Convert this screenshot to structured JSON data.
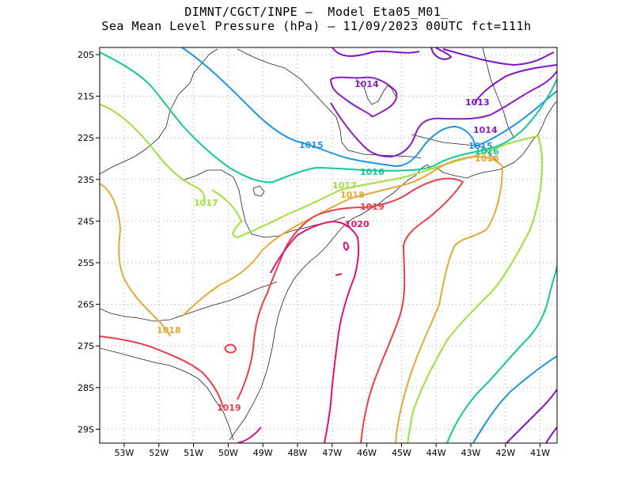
{
  "header": {
    "line1": "DIMNT/CGCT/INPE –  Model Eta05_M01_",
    "line2": "Sea Mean Level Pressure (hPa) – 11/09/2023 00UTC fct=111h"
  },
  "axes": {
    "lon_ticks": [
      "53W",
      "52W",
      "51W",
      "50W",
      "49W",
      "48W",
      "47W",
      "46W",
      "45W",
      "44W",
      "43W",
      "42W",
      "41W"
    ],
    "lat_ticks": [
      "20S",
      "21S",
      "22S",
      "23S",
      "24S",
      "25S",
      "26S",
      "27S",
      "28S",
      "29S"
    ]
  },
  "colors": {
    "c1013": "#7e13c9",
    "c1014": "#8c1ec2",
    "c1015": "#1f96e0",
    "c1016": "#16c79a",
    "c1017": "#9fe03c",
    "c1018": "#e6a83a",
    "c1019": "#e8404a",
    "c1020": "#e0127a",
    "c1021": "#1f96e0",
    "c1022": "#16c79a"
  },
  "contour_labels": {
    "l1013": "1013",
    "l1014a": "1014",
    "l1014b": "1014",
    "l1015a": "1015",
    "l1015b": "1015",
    "l1016a": "1016",
    "l1016b": "1016",
    "l1017a": "1017",
    "l1017b": "1017",
    "l1018a": "1018",
    "l1018b": "1018",
    "l1018c": "1018",
    "l1019a": "1019",
    "l1019b": "1019",
    "l1020": "1020"
  }
}
